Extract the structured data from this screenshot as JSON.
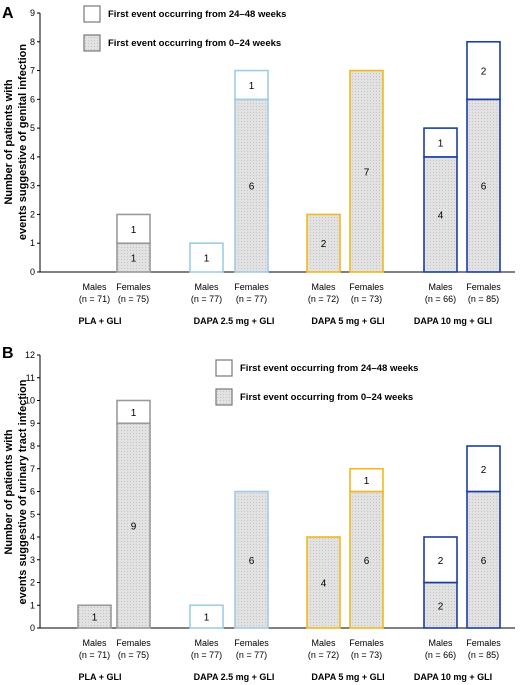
{
  "chart_data": [
    {
      "type": "bar",
      "panel": "A",
      "ylabel_lines": [
        "Number of patients with",
        "events suggestive of genital infection"
      ],
      "ylim": [
        0,
        9
      ],
      "yticks": [
        0,
        1,
        2,
        3,
        4,
        5,
        6,
        7,
        8,
        9
      ],
      "legend": [
        "First event occurring from 24–48 weeks",
        "First event occurring from 0–24 weeks"
      ],
      "groups": [
        {
          "label": "PLA + GLI",
          "color": "#9a9a9a",
          "bars": [
            {
              "sex": "Males",
              "n": "(n = 71)",
              "early": 0,
              "late": 0
            },
            {
              "sex": "Females",
              "n": "(n = 75)",
              "early": 1,
              "late": 1
            }
          ]
        },
        {
          "label": "DAPA 2.5 mg + GLI",
          "color": "#9fcbe8",
          "bars": [
            {
              "sex": "Males",
              "n": "(n = 77)",
              "early": 0,
              "late": 1
            },
            {
              "sex": "Females",
              "n": "(n = 77)",
              "early": 6,
              "late": 1
            }
          ]
        },
        {
          "label": "DAPA 5 mg + GLI",
          "color": "#f0b820",
          "bars": [
            {
              "sex": "Males",
              "n": "(n = 72)",
              "early": 2,
              "late": 0
            },
            {
              "sex": "Females",
              "n": "(n = 73)",
              "early": 7,
              "late": 0
            }
          ]
        },
        {
          "label": "DAPA 10 mg + GLI",
          "color": "#1a3fa0",
          "bars": [
            {
              "sex": "Males",
              "n": "(n = 66)",
              "early": 4,
              "late": 1
            },
            {
              "sex": "Females",
              "n": "(n = 85)",
              "early": 6,
              "late": 2
            }
          ]
        }
      ]
    },
    {
      "type": "bar",
      "panel": "B",
      "ylabel_lines": [
        "Number of patients with",
        "events suggestive of urinary tract infection"
      ],
      "ylim": [
        0,
        12
      ],
      "yticks": [
        0,
        1,
        2,
        3,
        4,
        5,
        6,
        7,
        8,
        9,
        10,
        11,
        12
      ],
      "legend": [
        "First event occurring from 24–48 weeks",
        "First event occurring from 0–24 weeks"
      ],
      "groups": [
        {
          "label": "PLA + GLI",
          "color": "#9a9a9a",
          "bars": [
            {
              "sex": "Males",
              "n": "(n = 71)",
              "early": 1,
              "late": 0
            },
            {
              "sex": "Females",
              "n": "(n = 75)",
              "early": 9,
              "late": 1
            }
          ]
        },
        {
          "label": "DAPA 2.5 mg + GLI",
          "color": "#9fcbe8",
          "bars": [
            {
              "sex": "Males",
              "n": "(n = 77)",
              "early": 0,
              "late": 1
            },
            {
              "sex": "Females",
              "n": "(n = 77)",
              "early": 6,
              "late": 0
            }
          ]
        },
        {
          "label": "DAPA 5 mg + GLI",
          "color": "#f0b820",
          "bars": [
            {
              "sex": "Males",
              "n": "(n = 72)",
              "early": 4,
              "late": 0
            },
            {
              "sex": "Females",
              "n": "(n = 73)",
              "early": 6,
              "late": 1
            }
          ]
        },
        {
          "label": "DAPA 10 mg + GLI",
          "color": "#1a3fa0",
          "bars": [
            {
              "sex": "Males",
              "n": "(n = 66)",
              "early": 2,
              "late": 2
            },
            {
              "sex": "Females",
              "n": "(n = 85)",
              "early": 6,
              "late": 2
            }
          ]
        }
      ]
    }
  ]
}
